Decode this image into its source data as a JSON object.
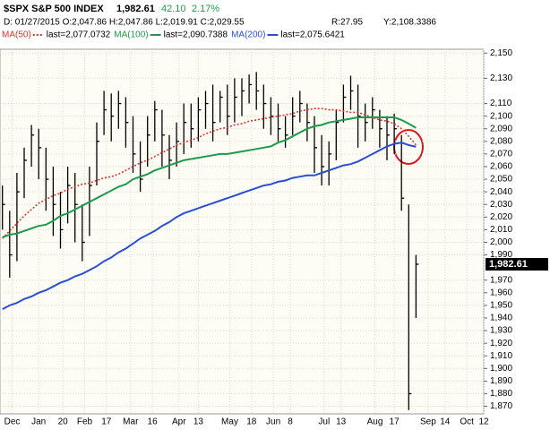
{
  "header": {
    "symbol": "$SPX S&P 500 INDEX",
    "price": "1,982.61",
    "change": "42.10",
    "change_pct": "2.17%",
    "ohlc_line": "D: 01/27/2015 O:2,047.86 H:2,047.86 L:2,019.91 C:2,029.55",
    "r": "R:27.95",
    "y": "Y:2,108.3386"
  },
  "chart_data": {
    "type": "ohlc",
    "x": [
      1,
      4,
      7,
      10,
      13,
      16,
      19,
      22,
      25,
      28,
      31,
      34,
      37,
      40,
      43,
      46,
      49,
      52,
      55,
      58,
      61,
      64,
      67,
      70,
      73,
      76,
      79,
      82,
      85,
      88,
      91,
      94,
      97,
      100,
      103,
      106,
      109,
      112,
      115,
      118,
      121,
      124,
      127,
      130,
      133,
      136,
      139,
      142,
      145,
      148,
      151,
      154,
      157,
      160,
      163,
      166,
      169,
      172
    ],
    "high": [
      2045,
      2025,
      2055,
      2075,
      2093,
      2090,
      2075,
      2060,
      2040,
      2060,
      2055,
      2030,
      2060,
      2095,
      2120,
      2118,
      2120,
      2115,
      2100,
      2080,
      2100,
      2112,
      2105,
      2085,
      2095,
      2110,
      2110,
      2115,
      2120,
      2125,
      2120,
      2125,
      2130,
      2130,
      2133,
      2135,
      2125,
      2115,
      2110,
      2100,
      2115,
      2120,
      2110,
      2100,
      2085,
      2080,
      2105,
      2125,
      2132,
      2125,
      2110,
      2115,
      2105,
      2100,
      2102,
      2085,
      2030,
      1990
    ],
    "low": [
      2010,
      1972,
      1985,
      2035,
      2060,
      2050,
      2025,
      2005,
      1995,
      2015,
      2000,
      1985,
      2005,
      2045,
      2085,
      2080,
      2090,
      2075,
      2055,
      2040,
      2060,
      2080,
      2060,
      2050,
      2060,
      2070,
      2075,
      2080,
      2090,
      2080,
      2095,
      2085,
      2095,
      2100,
      2110,
      2105,
      2090,
      2085,
      2080,
      2075,
      2085,
      2095,
      2080,
      2055,
      2045,
      2045,
      2065,
      2095,
      2105,
      2075,
      2080,
      2090,
      2075,
      2065,
      2070,
      2025,
      1867,
      1940
    ],
    "close": [
      2030,
      1990,
      2040,
      2065,
      2085,
      2075,
      2050,
      2030,
      2010,
      2045,
      2030,
      2000,
      2045,
      2080,
      2105,
      2100,
      2110,
      2095,
      2070,
      2050,
      2085,
      2105,
      2085,
      2065,
      2080,
      2095,
      2090,
      2105,
      2110,
      2095,
      2115,
      2100,
      2115,
      2120,
      2125,
      2120,
      2110,
      2100,
      2090,
      2085,
      2100,
      2110,
      2095,
      2075,
      2060,
      2070,
      2095,
      2115,
      2120,
      2100,
      2095,
      2105,
      2090,
      2085,
      2090,
      2035,
      1880,
      1982.61
    ],
    "bar_color": "#000000",
    "series": [
      {
        "name": "MA(50)",
        "detail": "last=2,077.0732",
        "color": "#d9342b",
        "dash": true,
        "values": [
          2003,
          2009,
          2015,
          2021,
          2026,
          2031,
          2034,
          2037,
          2039,
          2042,
          2044,
          2046,
          2047,
          2049,
          2051,
          2052,
          2054,
          2057,
          2060,
          2063,
          2065,
          2068,
          2071,
          2074,
          2077,
          2079,
          2081,
          2083,
          2086,
          2088,
          2090,
          2091,
          2093,
          2094,
          2096,
          2097,
          2098,
          2099,
          2100,
          2101,
          2102,
          2104,
          2105,
          2106,
          2106,
          2105,
          2105,
          2104,
          2103,
          2103,
          2101,
          2099,
          2097,
          2096,
          2094,
          2090,
          2084,
          2077.07
        ]
      },
      {
        "name": "MA(100)",
        "detail": "last=2,090.7388",
        "color": "#1e9a4a",
        "dash": false,
        "values": [
          2004,
          2006,
          2007,
          2009,
          2011,
          2013,
          2014,
          2017,
          2021,
          2023,
          2026,
          2029,
          2032,
          2035,
          2038,
          2041,
          2044,
          2046,
          2050,
          2052,
          2054,
          2057,
          2059,
          2061,
          2063,
          2065,
          2066,
          2067,
          2068,
          2069,
          2070,
          2070,
          2071,
          2072,
          2073,
          2074,
          2075,
          2076,
          2079,
          2081,
          2084,
          2087,
          2090,
          2092,
          2093,
          2095,
          2096,
          2097,
          2098,
          2099,
          2099,
          2099,
          2099,
          2099,
          2099,
          2097,
          2094,
          2090.74
        ]
      },
      {
        "name": "MA(200)",
        "detail": "last=2,075.6421",
        "color": "#2a4fd0",
        "dash": false,
        "values": [
          1947,
          1950,
          1952,
          1955,
          1957,
          1960,
          1962,
          1965,
          1968,
          1970,
          1973,
          1975,
          1978,
          1981,
          1985,
          1988,
          1992,
          1995,
          1999,
          2003,
          2006,
          2009,
          2013,
          2016,
          2020,
          2023,
          2025,
          2027,
          2029,
          2031,
          2033,
          2035,
          2037,
          2039,
          2041,
          2043,
          2045,
          2046,
          2048,
          2049,
          2051,
          2052,
          2053,
          2053,
          2055,
          2057,
          2059,
          2061,
          2062,
          2064,
          2067,
          2070,
          2073,
          2076,
          2078,
          2079,
          2077,
          2075.64
        ]
      }
    ],
    "last_label": "1,982.61",
    "xlim": [
      0,
      200
    ],
    "xticks": [
      {
        "value": 5,
        "label": "Dec"
      },
      {
        "value": 16,
        "label": "Jan"
      },
      {
        "value": 26,
        "label": "20"
      },
      {
        "value": 35,
        "label": "Feb"
      },
      {
        "value": 44,
        "label": "17"
      },
      {
        "value": 54,
        "label": "Mar"
      },
      {
        "value": 63,
        "label": "16"
      },
      {
        "value": 74,
        "label": "Apr"
      },
      {
        "value": 82,
        "label": "13"
      },
      {
        "value": 95,
        "label": "May"
      },
      {
        "value": 104,
        "label": "18"
      },
      {
        "value": 113,
        "label": "Jun"
      },
      {
        "value": 120,
        "label": "8"
      },
      {
        "value": 134,
        "label": "Jul"
      },
      {
        "value": 141,
        "label": "13"
      },
      {
        "value": 155,
        "label": "Aug"
      },
      {
        "value": 163,
        "label": "17"
      },
      {
        "value": 177,
        "label": "Sep"
      },
      {
        "value": 184,
        "label": "14"
      },
      {
        "value": 193,
        "label": "Oct"
      },
      {
        "value": 200,
        "label": "12"
      }
    ],
    "ylim": [
      1864,
      2153
    ],
    "yticks": [
      {
        "value": 2150,
        "label": "2,150"
      },
      {
        "value": 2130,
        "label": "2,130"
      },
      {
        "value": 2110,
        "label": "2,110"
      },
      {
        "value": 2100,
        "label": "2,100"
      },
      {
        "value": 2090,
        "label": "2,090"
      },
      {
        "value": 2080,
        "label": "2,080"
      },
      {
        "value": 2070,
        "label": "2,070"
      },
      {
        "value": 2060,
        "label": "2,060"
      },
      {
        "value": 2050,
        "label": "2,050"
      },
      {
        "value": 2040,
        "label": "2,040"
      },
      {
        "value": 2030,
        "label": "2,030"
      },
      {
        "value": 2020,
        "label": "2,020"
      },
      {
        "value": 2010,
        "label": "2,010"
      },
      {
        "value": 2000,
        "label": "2,000"
      },
      {
        "value": 1990,
        "label": "1,990"
      },
      {
        "value": 1970,
        "label": "1,970"
      },
      {
        "value": 1960,
        "label": "1,960"
      },
      {
        "value": 1950,
        "label": "1,950"
      },
      {
        "value": 1940,
        "label": "1,940"
      },
      {
        "value": 1930,
        "label": "1,930"
      },
      {
        "value": 1920,
        "label": "1,920"
      },
      {
        "value": 1910,
        "label": "1,910"
      },
      {
        "value": 1900,
        "label": "1,900"
      },
      {
        "value": 1890,
        "label": "1,890"
      },
      {
        "value": 1880,
        "label": "1,880"
      },
      {
        "value": 1870,
        "label": "1,870"
      }
    ],
    "grid": true
  }
}
